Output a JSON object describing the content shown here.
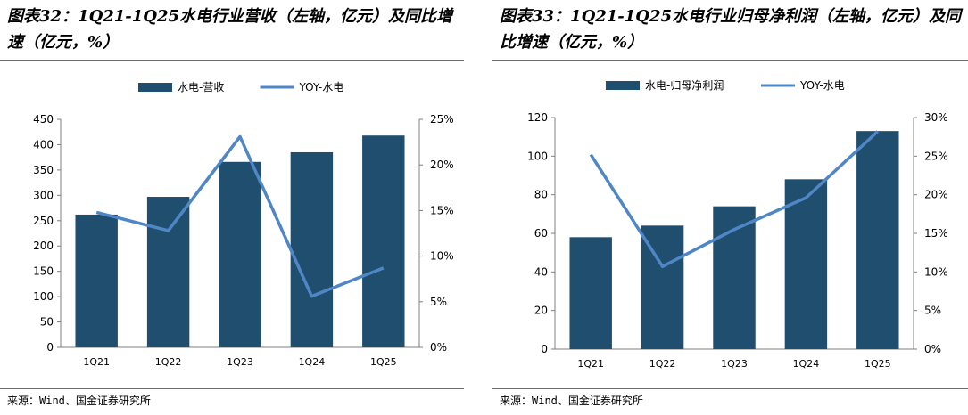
{
  "charts": [
    {
      "fig_title": "图表32：1Q21-1Q25水电行业营收（左轴，亿元）及同比增速（亿元，%）",
      "source": "来源：Wind、国金证券研究所"
    },
    {
      "fig_title": "图表33：1Q21-1Q25水电行业归母净利润（左轴，亿元）及同比增速（亿元，%）",
      "source": "来源：Wind、国金证券研究所"
    }
  ],
  "chart_data": [
    {
      "type": "bar",
      "title": "",
      "categories": [
        "1Q21",
        "1Q22",
        "1Q23",
        "1Q24",
        "1Q25"
      ],
      "series": [
        {
          "name": "水电-营收",
          "type": "bar",
          "axis": "left",
          "values": [
            262,
            297,
            366,
            385,
            418
          ],
          "color": "#1f4e6e"
        },
        {
          "name": "YOY-水电",
          "type": "line",
          "axis": "right",
          "values": [
            14.8,
            12.8,
            23.1,
            5.6,
            8.7
          ],
          "color": "#4f86c6"
        }
      ],
      "ylim_left": [
        0,
        450
      ],
      "yticks_left": [
        "0",
        "50",
        "100",
        "150",
        "200",
        "250",
        "300",
        "350",
        "400",
        "450"
      ],
      "ylim_right": [
        0,
        25
      ],
      "yticks_right": [
        "0%",
        "5%",
        "10%",
        "15%",
        "20%",
        "25%"
      ],
      "legend_position": "top",
      "grid": false
    },
    {
      "type": "bar",
      "title": "",
      "categories": [
        "1Q21",
        "1Q22",
        "1Q23",
        "1Q24",
        "1Q25"
      ],
      "series": [
        {
          "name": "水电-归母净利润",
          "type": "bar",
          "axis": "left",
          "values": [
            58,
            64,
            74,
            88,
            113
          ],
          "color": "#1f4e6e"
        },
        {
          "name": "YOY-水电",
          "type": "line",
          "axis": "right",
          "values": [
            25.2,
            10.7,
            15.5,
            19.6,
            28.2
          ],
          "color": "#4f86c6"
        }
      ],
      "ylim_left": [
        0,
        120
      ],
      "yticks_left": [
        "0",
        "20",
        "40",
        "60",
        "80",
        "100",
        "120"
      ],
      "ylim_right": [
        0,
        30
      ],
      "yticks_right": [
        "0%",
        "5%",
        "10%",
        "15%",
        "20%",
        "25%",
        "30%"
      ],
      "legend_position": "top",
      "grid": false
    }
  ]
}
